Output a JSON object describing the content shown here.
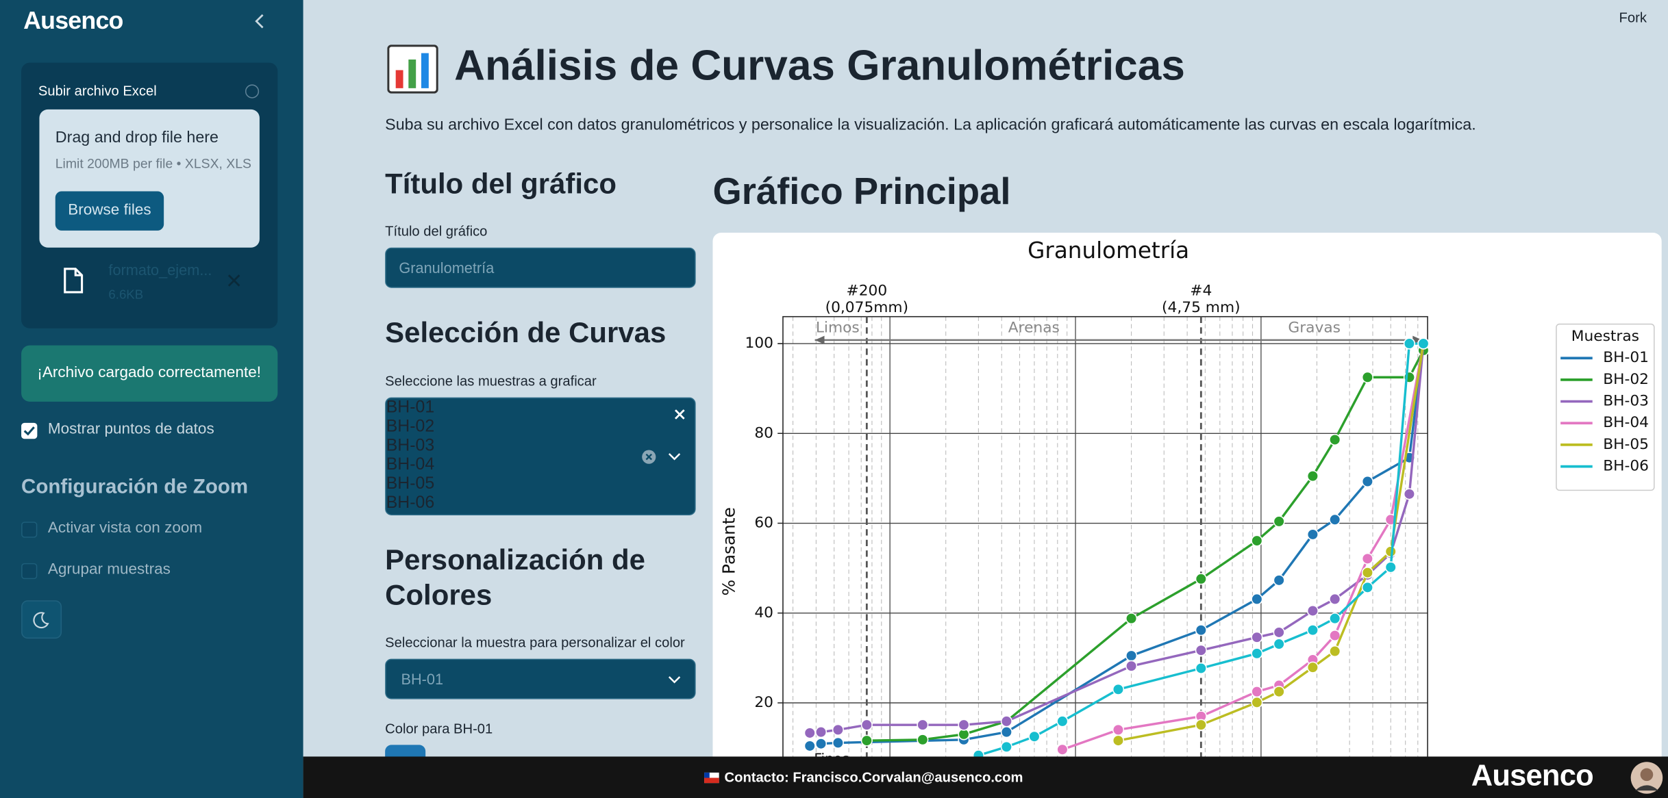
{
  "sidebar": {
    "logo": "Ausenco",
    "upload": {
      "label": "Subir archivo Excel",
      "dropzone_title": "Drag and drop file here",
      "dropzone_limit": "Limit 200MB per file • XLSX, XLS",
      "browse_button": "Browse files",
      "file_name": "formato_ejem...",
      "file_size": "6.6KB"
    },
    "success_message": "¡Archivo cargado correctamente!",
    "options": [
      {
        "label": "Mostrar puntos de datos",
        "checked": true
      }
    ],
    "zoom_header": "Configuración de Zoom",
    "zoom_options": [
      {
        "label": "Activar vista con zoom",
        "checked": false
      },
      {
        "label": "Agrupar muestras",
        "checked": false
      }
    ]
  },
  "header": {
    "fork": "Fork"
  },
  "main": {
    "title": "Análisis de Curvas Granulométricas",
    "description": "Suba su archivo Excel con datos granulométricos y personalice la visualización. La aplicación graficará automáticamente las curvas en escala logarítmica.",
    "title_section": {
      "header": "Título del gráfico",
      "label": "Título del gráfico",
      "value": "Granulometría"
    },
    "curves_section": {
      "header": "Selección de Curvas",
      "label": "Seleccione las muestras a graficar",
      "selected": [
        "BH-01",
        "BH-02",
        "BH-03",
        "BH-04",
        "BH-05",
        "BH-06"
      ]
    },
    "colors_section": {
      "header": "Personalización de Colores",
      "label": "Seleccionar la muestra para personalizar el color",
      "value": "BH-01",
      "picker_label": "Color para BH-01",
      "picker_color": "#1f77b4"
    },
    "chart_header": "Gráfico Principal"
  },
  "chart": {
    "type": "line",
    "title": "Granulometría",
    "y_label": "% Pasante",
    "x_scale": "log",
    "grid": true,
    "xlim": [
      0.0265,
      79
    ],
    "ylim": [
      0,
      106
    ],
    "yticks": [
      20,
      40,
      60,
      80,
      100
    ],
    "annotations": [
      {
        "x": 0.075,
        "label": "#200",
        "sublabel": "(0,075mm)"
      },
      {
        "x": 4.75,
        "label": "#4",
        "sublabel": "(4,75 mm)"
      }
    ],
    "regions": [
      "Limos",
      "Arenas",
      "Gravas"
    ],
    "fines_label": "Finos",
    "legend_title": "Muestras",
    "legend": "outside right",
    "series": [
      {
        "name": "BH-01",
        "color": "#1f77b4",
        "x": [
          0.037,
          0.0425,
          0.0525,
          0.25,
          0.425,
          2.0,
          4.75,
          9.5,
          12.5,
          19,
          25,
          37.5,
          63,
          75
        ],
        "values": [
          10.4,
          10.9,
          11.1,
          11.8,
          13.5,
          30.5,
          36.2,
          43.1,
          47.3,
          57.5,
          60.8,
          69.3,
          74.6,
          100
        ]
      },
      {
        "name": "BH-02",
        "color": "#2ca02c",
        "x": [
          0.075,
          0.15,
          0.25,
          0.425,
          2.0,
          4.75,
          9.5,
          12.5,
          19,
          25,
          37.5,
          63,
          75
        ],
        "values": [
          11.6,
          11.8,
          13.0,
          15.9,
          38.8,
          47.6,
          56.1,
          60.4,
          70.5,
          78.6,
          92.5,
          92.5,
          98.5
        ]
      },
      {
        "name": "BH-03",
        "color": "#9467bd",
        "x": [
          0.037,
          0.0425,
          0.0525,
          0.075,
          0.15,
          0.25,
          0.425,
          2.0,
          4.75,
          9.5,
          12.5,
          19,
          25,
          37.5,
          50,
          63,
          75
        ],
        "values": [
          13.3,
          13.5,
          14.0,
          15.1,
          15.1,
          15.1,
          15.9,
          28.2,
          31.7,
          34.6,
          35.7,
          40.5,
          43.1,
          48.5,
          53.3,
          66.5,
          100
        ]
      },
      {
        "name": "BH-04",
        "color": "#e377c2",
        "x": [
          0.85,
          1.7,
          4.75,
          9.5,
          12.5,
          19,
          25,
          37.5,
          50,
          75
        ],
        "values": [
          9.6,
          14.0,
          17.0,
          22.5,
          23.9,
          29.6,
          35.0,
          52.1,
          60.8,
          100
        ]
      },
      {
        "name": "BH-05",
        "color": "#bcbd22",
        "x": [
          1.7,
          4.75,
          9.5,
          12.5,
          19,
          25,
          37.5,
          50,
          75
        ],
        "values": [
          11.6,
          15.1,
          20.1,
          22.5,
          27.9,
          31.5,
          49.0,
          53.7,
          100
        ]
      },
      {
        "name": "BH-06",
        "color": "#17becf",
        "x": [
          0.3,
          0.425,
          0.6,
          0.85,
          1.7,
          4.75,
          9.5,
          12.5,
          19,
          25,
          37.5,
          50,
          63,
          75
        ],
        "values": [
          8.3,
          10.2,
          12.5,
          15.9,
          23.0,
          27.7,
          31.0,
          33.1,
          36.2,
          38.8,
          45.7,
          50.2,
          100,
          100
        ]
      }
    ]
  },
  "footer": {
    "contact": "Contacto: Francisco.Corvalan@ausenco.com",
    "logo": "Ausenco"
  }
}
